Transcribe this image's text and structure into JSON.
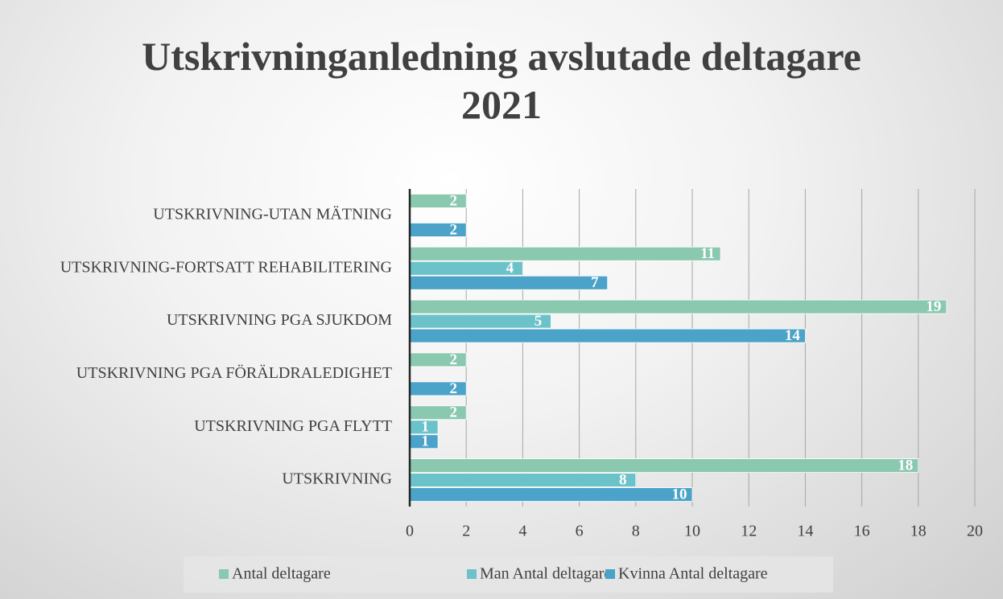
{
  "chart_data": {
    "type": "barh",
    "title": "Utskrivninganledning avslutade deltagare 2021",
    "categories": [
      "UTSKRIVNING-UTAN MÄTNING",
      "UTSKRIVNING-FORTSATT REHABILITERING",
      "UTSKRIVNING PGA SJUKDOM",
      "UTSKRIVNING PGA FÖRÄLDRALEDIGHET",
      "UTSKRIVNING PGA FLYTT",
      "UTSKRIVNING"
    ],
    "series": [
      {
        "name": "Antal deltagare",
        "color": "#8ac8b0",
        "values": [
          2,
          11,
          19,
          2,
          2,
          18
        ]
      },
      {
        "name": "Man Antal deltagare",
        "color": "#6cc2c9",
        "values": [
          null,
          4,
          5,
          null,
          1,
          8
        ]
      },
      {
        "name": "Kvinna Antal deltagare",
        "color": "#4ba3c9",
        "values": [
          2,
          7,
          14,
          2,
          1,
          10
        ]
      }
    ],
    "xlim": [
      0,
      20
    ],
    "xticks": [
      0,
      2,
      4,
      6,
      8,
      10,
      12,
      14,
      16,
      18,
      20
    ],
    "grid": true,
    "legend": "bottom"
  }
}
